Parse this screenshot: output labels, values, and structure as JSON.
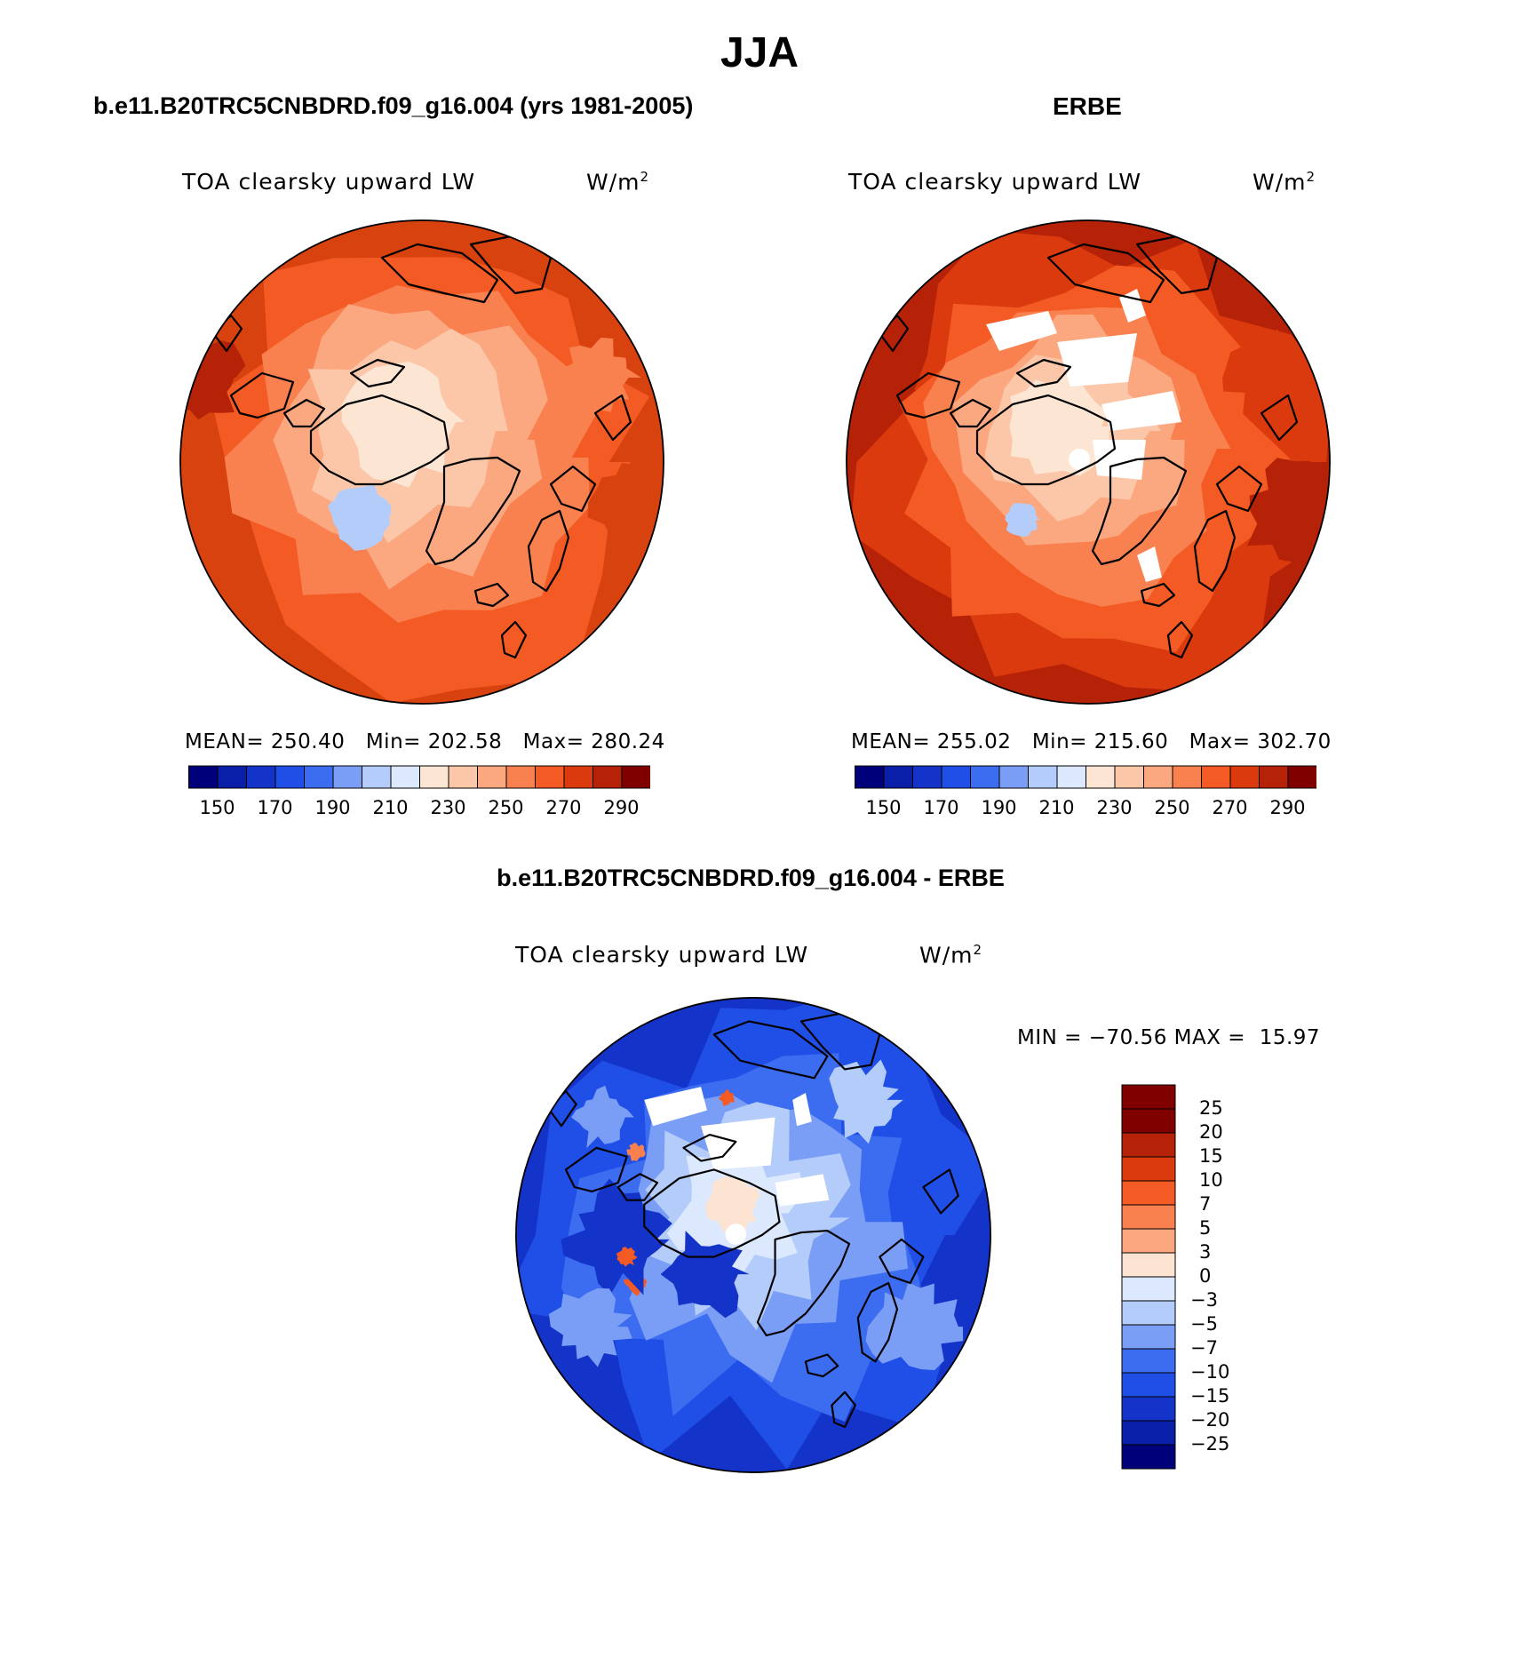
{
  "figure": {
    "season_title": "JJA"
  },
  "panel_model": {
    "title": "b.e11.B20TRC5CNBDRD.f09_g16.004 (yrs 1981-2005)",
    "variable": "TOA clearsky upward LW",
    "units_base": "W/m",
    "units_exp": "2",
    "stats": {
      "mean_label": "MEAN=",
      "mean": "250.40",
      "min_label": "Min=",
      "min": "202.58",
      "max_label": "Max=",
      "max": "280.24"
    }
  },
  "panel_obs": {
    "title": "ERBE",
    "variable": "TOA clearsky upward LW",
    "units_base": "W/m",
    "units_exp": "2",
    "stats": {
      "mean_label": "MEAN=",
      "mean": "255.02",
      "min_label": "Min=",
      "min": "215.60",
      "max_label": "Max=",
      "max": "302.70"
    }
  },
  "panel_diff": {
    "title": "b.e11.B20TRC5CNBDRD.f09_g16.004 - ERBE",
    "variable": "TOA clearsky upward LW",
    "units_base": "W/m",
    "units_exp": "2",
    "minmax": "MIN = −70.56 MAX =  15.97"
  },
  "abs_colorbar": {
    "colors": [
      "#00007a",
      "#0a1fa8",
      "#1433c8",
      "#1f4fe6",
      "#3c6cf0",
      "#7a9ef5",
      "#b4ccfa",
      "#dbe8fd",
      "#fde5d4",
      "#fcc7a8",
      "#fba880",
      "#f9804f",
      "#f45a23",
      "#db3a0e",
      "#b52207",
      "#800000"
    ],
    "tick_labels": [
      "150",
      "170",
      "190",
      "210",
      "230",
      "250",
      "270",
      "290"
    ]
  },
  "diff_colorbar": {
    "colors": [
      "#800000",
      "#b52207",
      "#db3a0e",
      "#f45a23",
      "#f9804f",
      "#fca77f",
      "#fde3d2",
      "#dbe8fd",
      "#b4ccfa",
      "#7a9ef5",
      "#3c6cf0",
      "#1f4fe6",
      "#1433c8",
      "#0a1fa8",
      "#00007a"
    ],
    "tick_labels": [
      "25",
      "20",
      "15",
      "10",
      "7",
      "5",
      "3",
      "0",
      "−3",
      "−5",
      "−7",
      "−10",
      "−15",
      "−20",
      "−25"
    ]
  },
  "map_colors": {
    "model_levels": [
      "#d8420f",
      "#f45a23",
      "#f9804f",
      "#fba880",
      "#fcc7a8",
      "#fde5d4",
      "#b4ccfa"
    ],
    "obs_levels": [
      "#b52207",
      "#db3a0e",
      "#f45a23",
      "#f9804f",
      "#fba880",
      "#fcc7a8",
      "#fde5d4",
      "#b4ccfa"
    ],
    "diff_levels": [
      "#1433c8",
      "#1f4fe6",
      "#3c6cf0",
      "#7a9ef5",
      "#b4ccfa",
      "#dbe8fd",
      "#fde3d2",
      "#f45a23"
    ],
    "missing": "#ffffff",
    "coast": "#000000"
  }
}
